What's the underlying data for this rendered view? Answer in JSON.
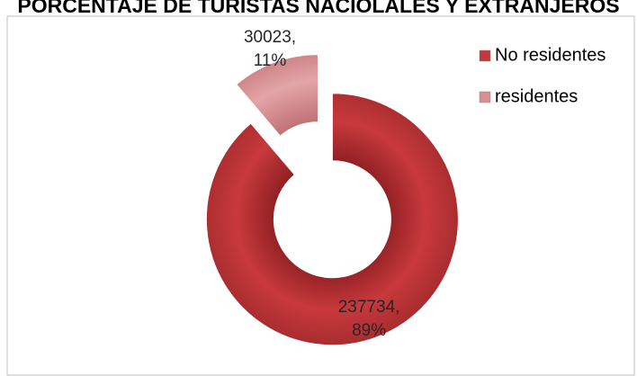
{
  "chart_data": {
    "type": "doughnut",
    "title": "PORCENTAJE DE TURISTAS NACIOLALES Y EXTRANJEROS",
    "categories": [
      "No residentes",
      "residentes"
    ],
    "values": [
      237734,
      30023
    ],
    "value_labels": [
      "237734, 89%",
      "30023, 11%"
    ],
    "colors": [
      "#c0393b",
      "#d98f92"
    ],
    "legend": "right"
  }
}
